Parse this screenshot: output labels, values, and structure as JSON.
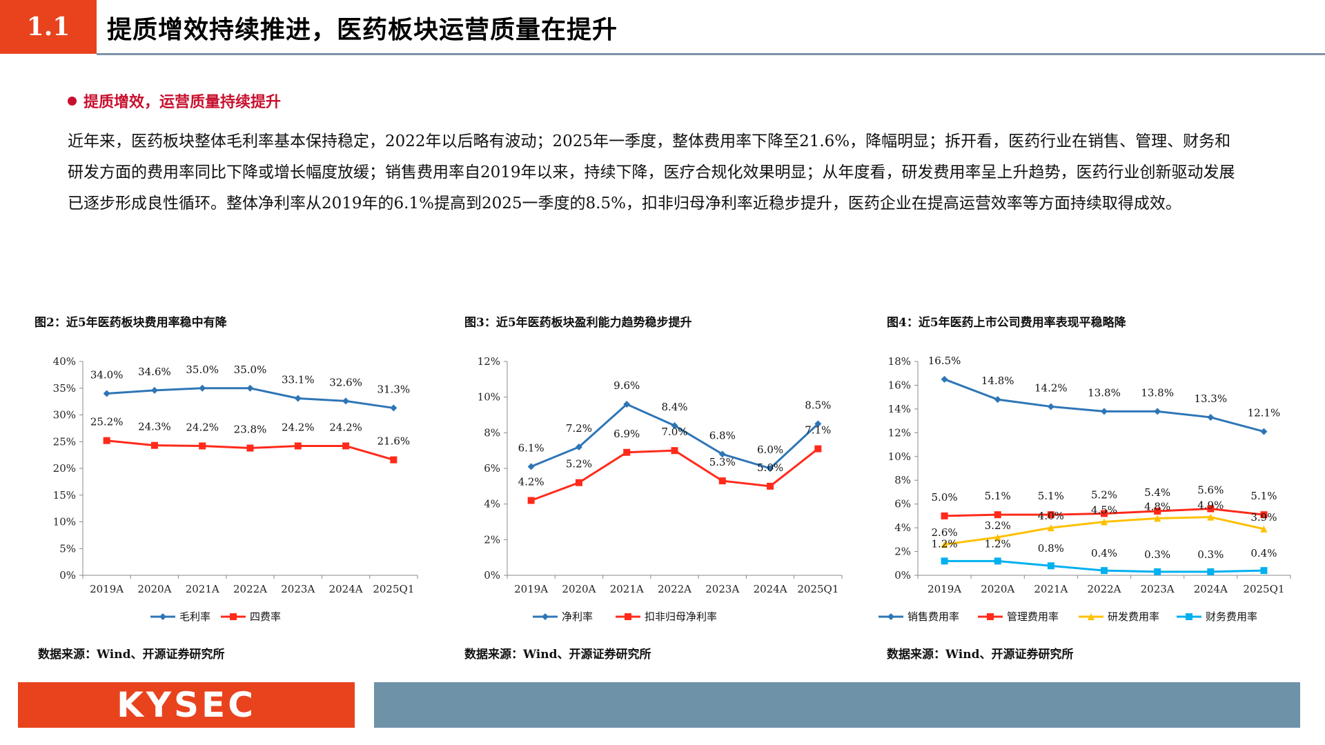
{
  "header": {
    "section_number": "1.1",
    "title": "提质增效持续推进，医药板块运营质量在提升"
  },
  "bullet": {
    "text": "提质增效，运营质量持续提升"
  },
  "paragraph": "近年来，医药板块整体毛利率基本保持稳定，2022年以后略有波动；2025年一季度，整体费用率下降至21.6%，降幅明显；拆开看，医药行业在销售、管理、财务和研发方面的费用率同比下降或增长幅度放缓；销售费用率自2019年以来，持续下降，医疗合规化效果明显；从年度看，研发费用率呈上升趋势，医药行业创新驱动发展已逐步形成良性循环。整体净利率从2019年的6.1%提高到2025一季度的8.5%，扣非归母净利率近稳步提升，医药企业在提高运营效率等方面持续取得成效。",
  "figures": [
    {
      "title": "图2：近5年医药板块费用率稳中有降",
      "source": "数据来源：Wind、开源证券研究所"
    },
    {
      "title": "图3：近5年医药板块盈利能力趋势稳步提升",
      "source": "数据来源：Wind、开源证券研究所"
    },
    {
      "title": "图4：近5年医药上市公司费用率表现平稳略降",
      "source": "数据来源：Wind、开源证券研究所"
    }
  ],
  "chart_data": [
    {
      "type": "line",
      "categories": [
        "2019A",
        "2020A",
        "2021A",
        "2022A",
        "2023A",
        "2024A",
        "2025Q1"
      ],
      "ylim": [
        0,
        40
      ],
      "yticks": [
        0,
        5,
        10,
        15,
        20,
        25,
        30,
        35,
        40
      ],
      "unit": "%",
      "series": [
        {
          "name": "毛利率",
          "color": "#2e75b6",
          "marker": "diamond",
          "values": [
            34.0,
            34.6,
            35.0,
            35.0,
            33.1,
            32.6,
            31.3
          ]
        },
        {
          "name": "四费率",
          "color": "#ff2a1a",
          "marker": "square",
          "values": [
            25.2,
            24.3,
            24.2,
            23.8,
            24.2,
            24.2,
            21.6
          ]
        }
      ]
    },
    {
      "type": "line",
      "categories": [
        "2019A",
        "2020A",
        "2021A",
        "2022A",
        "2023A",
        "2024A",
        "2025Q1"
      ],
      "ylim": [
        0,
        12
      ],
      "yticks": [
        0,
        2,
        4,
        6,
        8,
        10,
        12
      ],
      "unit": "%",
      "series": [
        {
          "name": "净利率",
          "color": "#2e75b6",
          "marker": "diamond",
          "values": [
            6.1,
            7.2,
            9.6,
            8.4,
            6.8,
            6.0,
            8.5
          ]
        },
        {
          "name": "扣非归母净利率",
          "color": "#ff2a1a",
          "marker": "square",
          "values": [
            4.2,
            5.2,
            6.9,
            7.0,
            5.3,
            5.0,
            7.1
          ]
        }
      ]
    },
    {
      "type": "line",
      "categories": [
        "2019A",
        "2020A",
        "2021A",
        "2022A",
        "2023A",
        "2024A",
        "2025Q1"
      ],
      "ylim": [
        0,
        18
      ],
      "yticks": [
        0,
        2,
        4,
        6,
        8,
        10,
        12,
        14,
        16,
        18
      ],
      "unit": "%",
      "series": [
        {
          "name": "销售费用率",
          "color": "#2e75b6",
          "marker": "diamond",
          "values": [
            16.5,
            14.8,
            14.2,
            13.8,
            13.8,
            13.3,
            12.1
          ]
        },
        {
          "name": "管理费用率",
          "color": "#ff2a1a",
          "marker": "square",
          "values": [
            5.0,
            5.1,
            5.1,
            5.2,
            5.4,
            5.6,
            5.1
          ]
        },
        {
          "name": "研发费用率",
          "color": "#ffc000",
          "marker": "triangle",
          "values": [
            2.6,
            3.2,
            4.0,
            4.5,
            4.8,
            4.9,
            3.9
          ]
        },
        {
          "name": "财务费用率",
          "color": "#00b0f0",
          "marker": "square",
          "values": [
            1.2,
            1.2,
            0.8,
            0.4,
            0.3,
            0.3,
            0.4
          ]
        }
      ]
    }
  ],
  "footer": {
    "logo_text": "KYSEC"
  }
}
